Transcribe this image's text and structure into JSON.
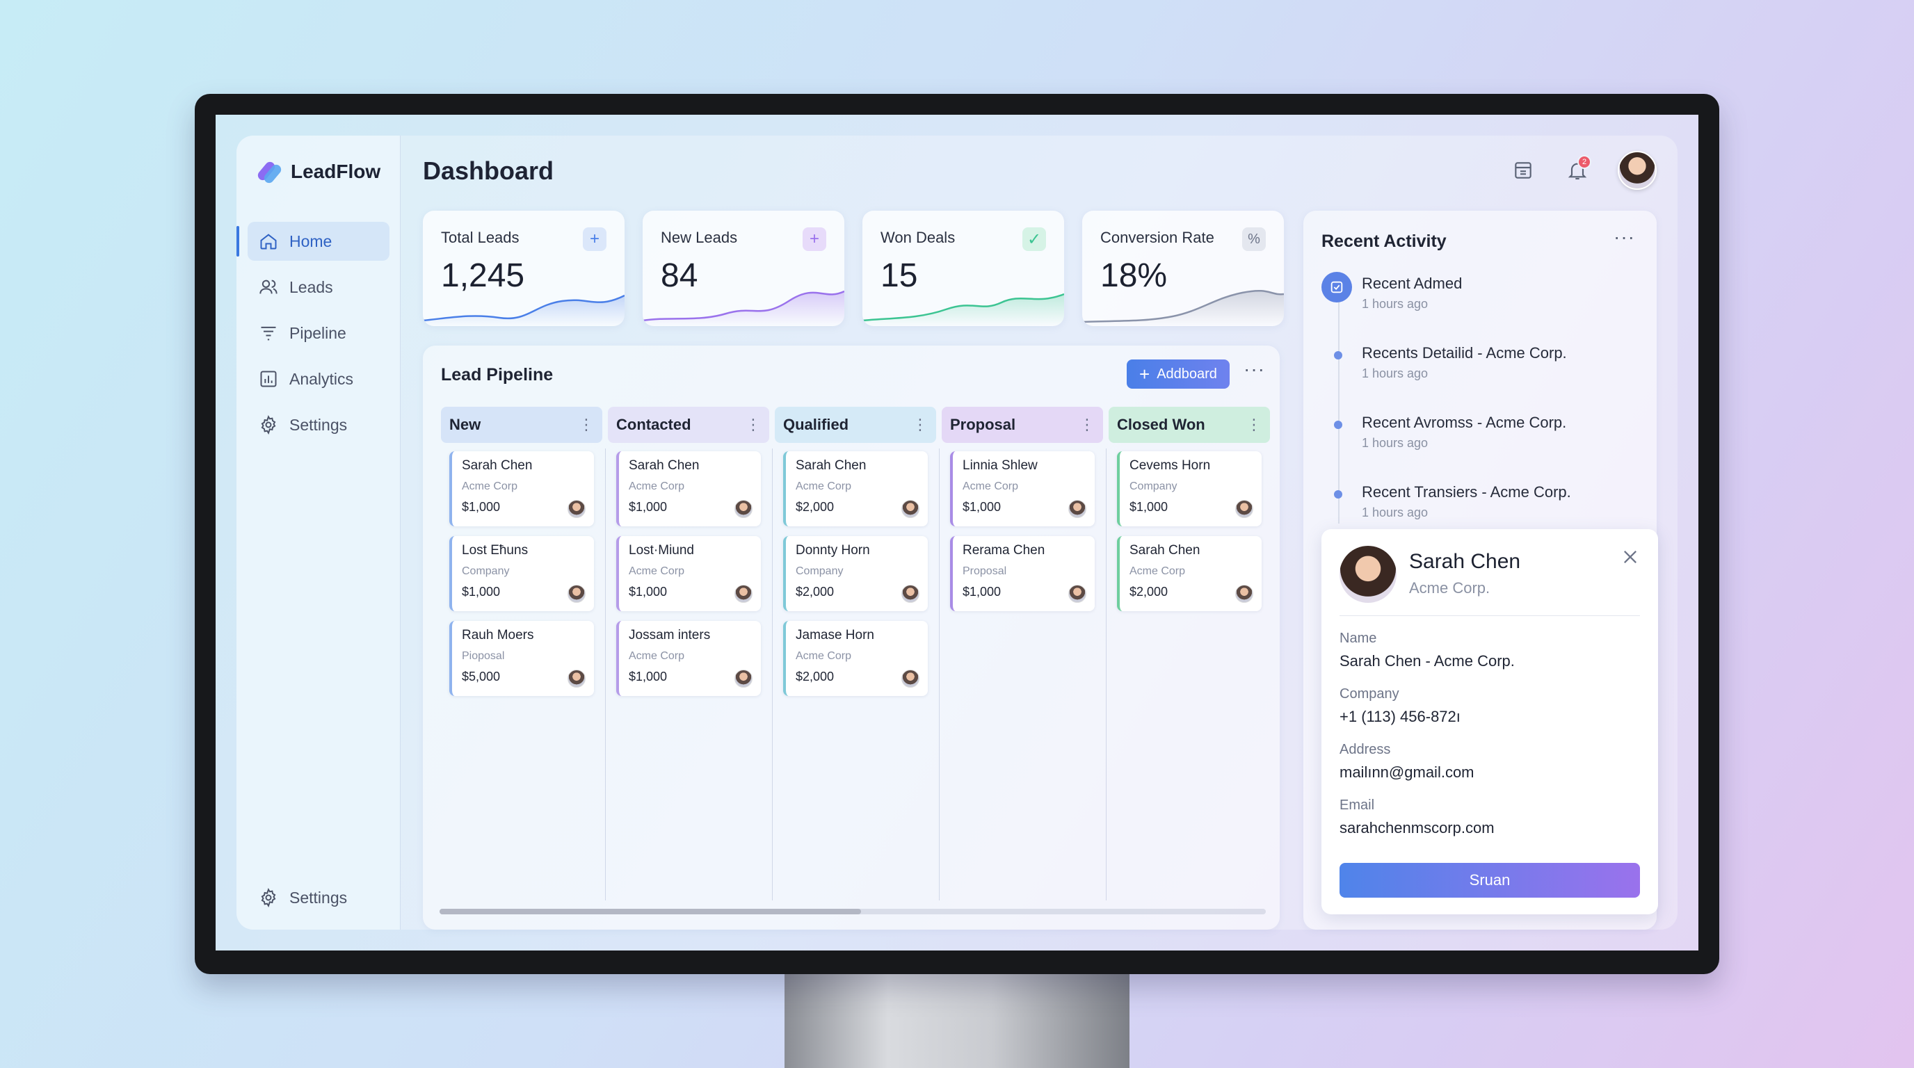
{
  "app": {
    "name": "LeadFlow",
    "page_title": "Dashboard"
  },
  "sidebar": {
    "items": [
      {
        "label": "Home",
        "icon": "home-icon",
        "active": true
      },
      {
        "label": "Leads",
        "icon": "users-icon"
      },
      {
        "label": "Pipeline",
        "icon": "filter-icon"
      },
      {
        "label": "Analytics",
        "icon": "chart-icon"
      },
      {
        "label": "Settings",
        "icon": "gear-icon"
      }
    ],
    "bottom": {
      "label": "Settings",
      "icon": "gear-icon"
    }
  },
  "header": {
    "notifications_count": "2"
  },
  "stats": [
    {
      "label": "Total Leads",
      "value": "1,245",
      "icon": "plus-icon",
      "color": "#4a7fe8"
    },
    {
      "label": "New Leads",
      "value": "84",
      "icon": "plus-icon",
      "color": "#9a72ec"
    },
    {
      "label": "Won Deals",
      "value": "15",
      "icon": "check-icon",
      "color": "#3cc492"
    },
    {
      "label": "Conversion Rate",
      "value": "18%",
      "icon": "percent-icon",
      "glyph": "%",
      "color": "#8a93aa"
    }
  ],
  "pipeline": {
    "title": "Lead Pipeline",
    "add_label": "Addboard",
    "columns": [
      {
        "name": "New",
        "color": "#d6e4f8",
        "accent": "#8fb3ee",
        "cards": [
          {
            "name": "Sarah Chen",
            "company": "Acme Corp",
            "amount": "$1,000"
          },
          {
            "name": "Lost Eħuns",
            "company": "Company",
            "amount": "$1,000"
          },
          {
            "name": "Rauh Moers",
            "company": "Pioposal",
            "amount": "$5,000"
          }
        ]
      },
      {
        "name": "Contacted",
        "color": "#e4e3f8",
        "accent": "#b59ce9",
        "cards": [
          {
            "name": "Sarah Chen",
            "company": "Acme Corp",
            "amount": "$1,000"
          },
          {
            "name": "Lost·Miund",
            "company": "Acme Corp",
            "amount": "$1,000"
          },
          {
            "name": "Jossam inters",
            "company": "Acme Corp",
            "amount": "$1,000"
          }
        ]
      },
      {
        "name": "Qualified",
        "color": "#d5eaf7",
        "accent": "#7fc9d8",
        "cards": [
          {
            "name": "Sarah Chen",
            "company": "Acme Corp",
            "amount": "$2,000"
          },
          {
            "name": "Donnty Horn",
            "company": "Company",
            "amount": "$2,000"
          },
          {
            "name": "Jamase Horn",
            "company": "Acme Corp",
            "amount": "$2,000"
          }
        ]
      },
      {
        "name": "Proposal",
        "color": "#e4d8f6",
        "accent": "#a98ce6",
        "cards": [
          {
            "name": "Linnia Shlew",
            "company": "Acme Corp",
            "amount": "$1,000"
          },
          {
            "name": "Rerama Chen",
            "company": "Proposal",
            "amount": "$1,000"
          }
        ]
      },
      {
        "name": "Closed Won",
        "color": "#cfeedf",
        "accent": "#6fcf9f",
        "cards": [
          {
            "name": "Cevems Horn",
            "company": "Company",
            "amount": "$1,000"
          },
          {
            "name": "Sarah Chen",
            "company": "Acme Corp",
            "amount": "$2,000"
          }
        ]
      }
    ]
  },
  "activity": {
    "title": "Recent Activity",
    "items": [
      {
        "text": "Recent Admed",
        "time": "1 hours ago"
      },
      {
        "text": "Recents Detailid - Acme Corp.",
        "time": "1 hours ago"
      },
      {
        "text": "Recent Avromss - Acme Corp.",
        "time": "1 hours ago"
      },
      {
        "text": "Recent Transiers - Acme Corp.",
        "time": "1 hours ago"
      }
    ]
  },
  "contact": {
    "name": "Sarah Chen",
    "company": "Acme Corp.",
    "fields": [
      {
        "label": "Name",
        "value": "Sarah Chen - Acme Corp."
      },
      {
        "label": "Company",
        "value": "+1 (113) 456-872ı"
      },
      {
        "label": "Address",
        "value": "mailınn@gmail.com"
      },
      {
        "label": "Email",
        "value": "sarahchenmscorp.com"
      }
    ],
    "button_label": "Sruan"
  }
}
